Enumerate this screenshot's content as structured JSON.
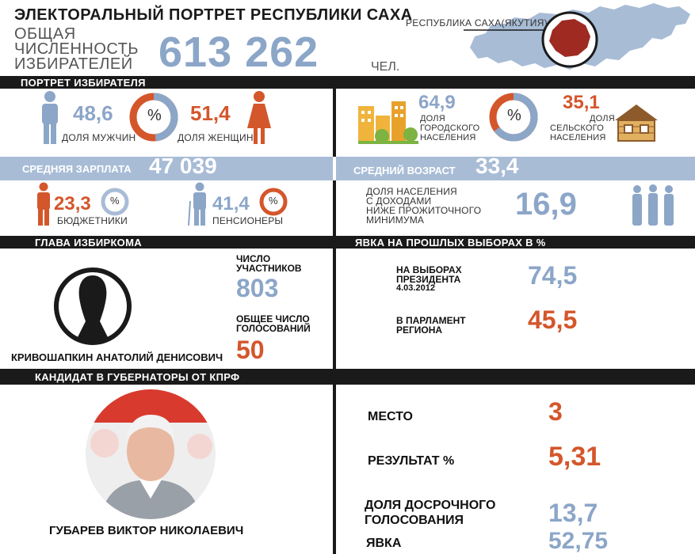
{
  "header": {
    "title": "ЭЛЕКТОРАЛЬНЫЙ ПОРТРЕТ РЕСПУБЛИКИ САХА",
    "voters_label_1": "ОБЩАЯ",
    "voters_label_2": "ЧИСЛЕННОСТЬ",
    "voters_label_3": "ИЗБИРАТЕЛЕЙ",
    "voters_value": "613 262",
    "voters_unit": "ЧЕЛ.",
    "map_label": "РЕСПУБЛИКА САХА(ЯКУТИЯ)"
  },
  "portrait": {
    "section_title": "ПОРТРЕТ ИЗБИРАТЕЛЯ",
    "men_value": "48,6",
    "men_label": "ДОЛЯ МУЖЧИН",
    "women_value": "51,4",
    "women_label": "ДОЛЯ ЖЕНЩИН",
    "percent_sign": "%",
    "urban_value": "64,9",
    "urban_label_1": "ДОЛЯ",
    "urban_label_2": "ГОРОДСКОГО",
    "urban_label_3": "НАСЕЛЕНИЯ",
    "rural_value": "35,1",
    "rural_label_1": "ДОЛЯ",
    "rural_label_2": "СЕЛЬСКОГО",
    "rural_label_3": "НАСЕЛЕНИЯ",
    "men_share": 0.486,
    "urban_share": 0.649
  },
  "stats": {
    "salary_label": "СРЕДНЯЯ ЗАРПЛАТА",
    "salary_value": "47 039",
    "age_label": "СРЕДНИЙ ВОЗРАСТ",
    "age_value": "33,4",
    "budget_value": "23,3",
    "budget_label": "БЮДЖЕТНИКИ",
    "pension_value": "41,4",
    "pension_label": "ПЕНСИОНЕРЫ",
    "poverty_label_1": "ДОЛЯ НАСЕЛЕНИЯ",
    "poverty_label_2": "С ДОХОДАМИ",
    "poverty_label_3": "НИЖЕ ПРОЖИТОЧНОГО",
    "poverty_label_4": "МИНИМУМА",
    "poverty_value": "16,9"
  },
  "commission": {
    "section_title": "ГЛАВА ИЗБИРКОМА",
    "members_label_1": "ЧИСЛО",
    "members_label_2": "УЧАСТНИКОВ",
    "members_value": "803",
    "votes_label_1": "ОБЩЕЕ ЧИСЛО",
    "votes_label_2": "ГОЛОСОВАНИЙ",
    "votes_value": "50",
    "head_name": "КРИВОШАПКИН АНАТОЛИЙ ДЕНИСОВИЧ"
  },
  "turnout": {
    "section_title": "ЯВКА НА ПРОШЛЫХ ВЫБОРАХ В %",
    "president_label_1": "НА ВЫБОРАХ",
    "president_label_2": "ПРЕЗИДЕНТА",
    "president_label_3": "4.03.2012",
    "president_value": "74,5",
    "parliament_label_1": "В ПАРЛАМЕНТ",
    "parliament_label_2": "РЕГИОНА",
    "parliament_value": "45,5"
  },
  "candidate": {
    "section_title": "КАНДИДАТ В ГУБЕРНАТОРЫ ОТ КПРФ",
    "name": "ГУБАРЕВ ВИКТОР НИКОЛАЕВИЧ",
    "place_label": "МЕСТО",
    "place_value": "3",
    "result_label": "РЕЗУЛЬТАТ %",
    "result_value": "5,31",
    "early_label_1": "ДОЛЯ ДОСРОЧНОГО",
    "early_label_2": "ГОЛОСОВАНИЯ",
    "early_value": "13,7",
    "turnout_label": "ЯВКА",
    "turnout_value": "52,75"
  },
  "colors": {
    "blue": "#8ca6c8",
    "orange": "#d4562b",
    "dark": "#1a1a1a",
    "band": "#a8bcd6",
    "region_red": "#9e2a22"
  }
}
